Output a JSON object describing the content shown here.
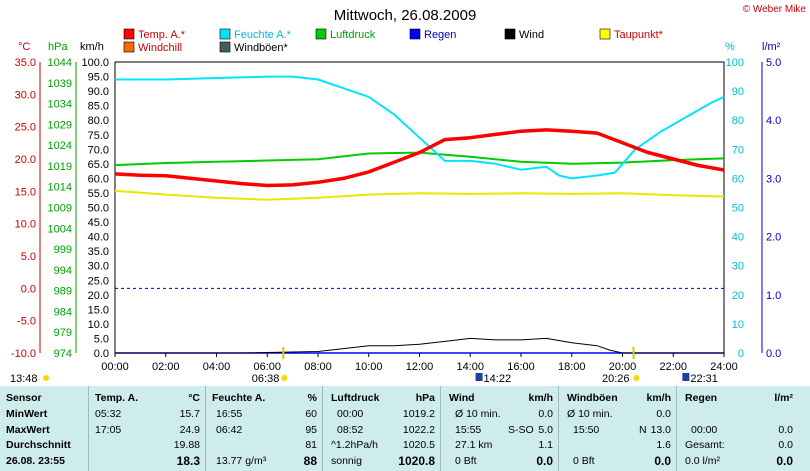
{
  "title": "Mittwoch, 26.08.2009",
  "copyright": "© Weber Mike",
  "legend": [
    {
      "label": "Temp. A.*",
      "color": "#ff0000"
    },
    {
      "label": "Feuchte A.*",
      "color": "#00e5ff"
    },
    {
      "label": "Luftdruck",
      "color": "#00cc00"
    },
    {
      "label": "Regen",
      "color": "#0000ff"
    },
    {
      "label": "Wind",
      "color": "#000000"
    },
    {
      "label": "Taupunkt*",
      "color": "#ffff00"
    },
    {
      "label": "Windchill",
      "color": "#ff6600"
    },
    {
      "label": "Windböen*",
      "color": "#406060"
    }
  ],
  "axes": {
    "temp_unit": "°C",
    "press_unit": "hPa",
    "wind_unit": "km/h",
    "hum_unit": "%",
    "rain_unit": "l/m²",
    "temp_ticks": [
      "35.0",
      "30.0",
      "25.0",
      "20.0",
      "15.0",
      "10.0",
      "5.0",
      "0.0",
      "-5.0",
      "-10.0"
    ],
    "press_ticks": [
      "1044",
      "1039",
      "1034",
      "1029",
      "1024",
      "1019",
      "1014",
      "1009",
      "1004",
      "999",
      "994",
      "989",
      "984",
      "979",
      "974"
    ],
    "wind_ticks": [
      "100.0",
      "95.0",
      "90.0",
      "85.0",
      "80.0",
      "75.0",
      "70.0",
      "65.0",
      "60.0",
      "55.0",
      "50.0",
      "45.0",
      "40.0",
      "35.0",
      "30.0",
      "25.0",
      "20.0",
      "15.0",
      "10.0",
      "5.0",
      "0.0"
    ],
    "hum_ticks": [
      "100",
      "90",
      "80",
      "70",
      "60",
      "50",
      "40",
      "30",
      "20",
      "10",
      "0"
    ],
    "rain_ticks": [
      "5.0",
      "4.0",
      "3.0",
      "2.0",
      "1.0",
      "0.0"
    ],
    "x_ticks": [
      "00:00",
      "02:00",
      "04:00",
      "06:00",
      "08:00",
      "10:00",
      "12:00",
      "14:00",
      "16:00",
      "18:00",
      "20:00",
      "22:00",
      "24:00"
    ]
  },
  "events": {
    "first_time": "13:48",
    "sunrise": "06:38",
    "peak1": "14:22",
    "sunset": "20:26",
    "peak2": "22:31"
  },
  "chart_data": {
    "type": "line",
    "title": "Mittwoch, 26.08.2009",
    "xlabel": "",
    "xlim": [
      0,
      24
    ],
    "series": [
      {
        "name": "Temp. A.*",
        "axis": "temp",
        "x": [
          0,
          1,
          2,
          3,
          4,
          5,
          6,
          7,
          8,
          9,
          10,
          11,
          12,
          13,
          14,
          15,
          16,
          17,
          18,
          19,
          20,
          21,
          22,
          23,
          24
        ],
        "values": [
          17.7,
          17.5,
          17.4,
          17.0,
          16.6,
          16.2,
          15.9,
          16.0,
          16.4,
          17.0,
          18.0,
          19.5,
          21.0,
          23.0,
          23.3,
          23.8,
          24.3,
          24.5,
          24.3,
          24.0,
          22.5,
          21.0,
          20.0,
          19.0,
          18.3
        ]
      },
      {
        "name": "Feuchte A.*",
        "axis": "hum",
        "x": [
          0,
          2,
          4,
          6,
          7,
          8,
          9,
          10,
          11,
          12,
          13,
          14,
          15,
          16,
          17,
          17.5,
          18,
          19,
          19.7,
          20.5,
          21.5,
          22.5,
          23.5,
          24
        ],
        "values": [
          94,
          94,
          94.5,
          95,
          95,
          94,
          91,
          88,
          82,
          74,
          66,
          66,
          65,
          63,
          64,
          61,
          60,
          61,
          62,
          70,
          76,
          81,
          86,
          88
        ]
      },
      {
        "name": "Luftdruck",
        "axis": "press",
        "x": [
          0,
          2,
          4,
          6,
          8,
          10,
          12,
          14,
          16,
          18,
          20,
          22,
          24
        ],
        "values": [
          1019.2,
          1019.7,
          1020.0,
          1020.3,
          1020.6,
          1022.0,
          1022.2,
          1021.2,
          1020.0,
          1019.5,
          1019.8,
          1020.4,
          1020.8
        ]
      },
      {
        "name": "Taupunkt*",
        "axis": "temp",
        "x": [
          0,
          2,
          4,
          6,
          8,
          10,
          12,
          14,
          16,
          18,
          20,
          22,
          24
        ],
        "values": [
          15.1,
          14.5,
          14.0,
          13.7,
          14.0,
          14.5,
          14.7,
          14.6,
          14.7,
          14.6,
          14.7,
          14.4,
          14.2
        ]
      },
      {
        "name": "Wind",
        "axis": "wind",
        "x": [
          0,
          5,
          8,
          9,
          10,
          11,
          12,
          13,
          14,
          15,
          16,
          17,
          18,
          19,
          19.5,
          20,
          24
        ],
        "values": [
          0,
          0,
          0.5,
          1.5,
          2.5,
          2.5,
          3.0,
          4.0,
          5.0,
          4.5,
          4.5,
          5.0,
          3.5,
          2.5,
          1.0,
          0,
          0
        ]
      },
      {
        "name": "Regen",
        "axis": "rain",
        "x": [
          0,
          24
        ],
        "values": [
          0,
          0
        ]
      }
    ],
    "ylim_temp": [
      -10,
      35
    ],
    "ylim_press": [
      974,
      1044
    ],
    "ylim_wind": [
      0,
      100
    ],
    "ylim_hum": [
      0,
      100
    ],
    "ylim_rain": [
      0,
      5
    ],
    "reference_lines": [
      {
        "axis": "temp",
        "value": 0,
        "color": "#0000c0"
      }
    ]
  },
  "table": {
    "sensor": {
      "header": "Sensor",
      "rows": [
        "MinWert",
        "MaxWert",
        "Durchschnitt",
        "26.08. 23:55"
      ]
    },
    "temp": {
      "header": "Temp. A.",
      "unit": "°C",
      "rows": [
        [
          "05:32",
          "15.7"
        ],
        [
          "17:05",
          "24.9"
        ],
        [
          "",
          "19.88"
        ],
        [
          "",
          "18.3"
        ]
      ]
    },
    "hum": {
      "header": "Feuchte A.",
      "unit": "%",
      "rows": [
        [
          "16:55",
          "60"
        ],
        [
          "06:42",
          "95"
        ],
        [
          "",
          "81"
        ],
        [
          "13.77 g/m³",
          "88"
        ]
      ]
    },
    "press": {
      "header": "Luftdruck",
      "unit": "hPa",
      "rows": [
        [
          "00:00",
          "1019.2"
        ],
        [
          "08:52",
          "1022.2"
        ],
        [
          "^1.2hPa/h",
          "1020.5"
        ],
        [
          "sonnig",
          "1020.8"
        ]
      ]
    },
    "wind": {
      "header": "Wind",
      "unit": "km/h",
      "rows": [
        [
          "Ø 10 min.",
          "",
          "0.0"
        ],
        [
          "15:55",
          "S-SO",
          "5.0"
        ],
        [
          "27.1 km",
          "",
          "1.1"
        ],
        [
          "0 Bft",
          "",
          "0.0"
        ]
      ]
    },
    "gust": {
      "header": "Windböen",
      "unit": "km/h",
      "rows": [
        [
          "Ø 10 min.",
          "",
          "0.0"
        ],
        [
          "15:50",
          "N",
          "13.0"
        ],
        [
          "",
          "",
          "1.6"
        ],
        [
          "0 Bft",
          "",
          "0.0"
        ]
      ]
    },
    "rain": {
      "header": "Regen",
      "unit": "l/m²",
      "rows": [
        [
          "",
          ""
        ],
        [
          "00:00",
          "0.0"
        ],
        [
          "Gesamt:",
          "0.0"
        ],
        [
          "0.0 l/m²",
          "0.0"
        ]
      ]
    }
  }
}
